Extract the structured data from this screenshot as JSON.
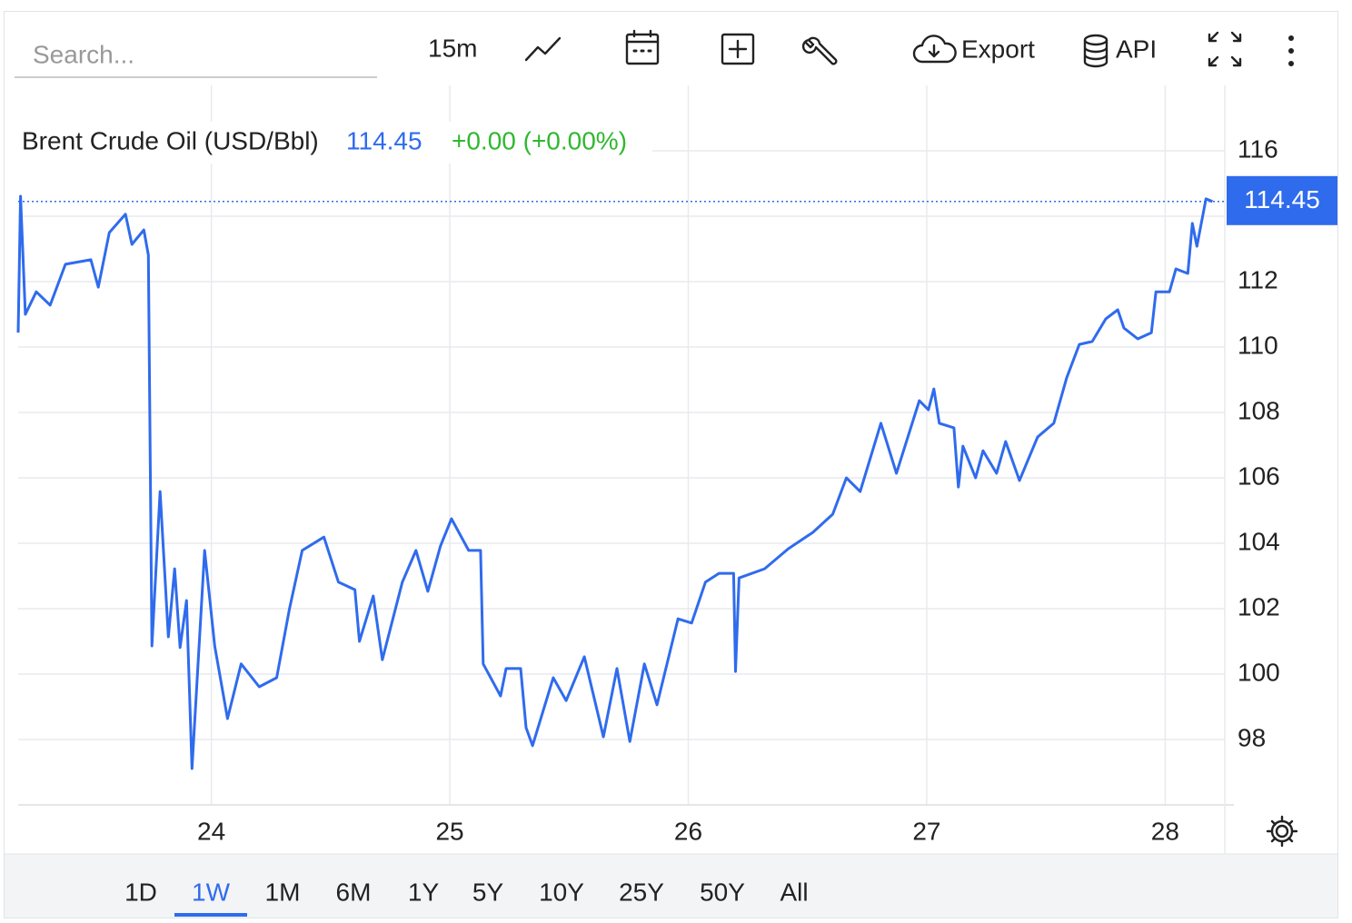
{
  "toolbar": {
    "search_placeholder": "Search...",
    "interval": "15m",
    "export": "Export",
    "api": "API"
  },
  "chart_data": {
    "type": "line",
    "title": "Brent Crude Oil (USD/Bbl)",
    "price": 114.45,
    "change": "+0.00 (+0.00%)",
    "color": "#2f6bed",
    "grid": true,
    "xlim": [
      23.19,
      28.25
    ],
    "xticks": [
      24,
      25,
      26,
      27,
      28
    ],
    "ylim": [
      96,
      118
    ],
    "yticks": [
      98,
      100,
      102,
      104,
      106,
      108,
      110,
      112,
      114,
      116
    ],
    "x": [
      23.19,
      23.2,
      23.22,
      23.266,
      23.324,
      23.388,
      23.495,
      23.526,
      23.572,
      23.64,
      23.667,
      23.717,
      23.736,
      23.751,
      23.785,
      23.82,
      23.846,
      23.869,
      23.896,
      23.919,
      23.972,
      24.014,
      24.068,
      24.125,
      24.201,
      24.274,
      24.327,
      24.381,
      24.472,
      24.533,
      24.602,
      24.621,
      24.679,
      24.717,
      24.801,
      24.858,
      24.908,
      24.961,
      25.007,
      25.079,
      25.129,
      25.14,
      25.213,
      25.236,
      25.297,
      25.32,
      25.347,
      25.434,
      25.488,
      25.564,
      25.644,
      25.701,
      25.755,
      25.816,
      25.869,
      25.957,
      26.014,
      26.072,
      26.129,
      26.19,
      26.198,
      26.213,
      26.32,
      26.419,
      26.522,
      26.606,
      26.663,
      26.721,
      26.808,
      26.873,
      26.969,
      27.007,
      27.03,
      27.053,
      27.114,
      27.133,
      27.152,
      27.205,
      27.236,
      27.293,
      27.331,
      27.389,
      27.465,
      27.533,
      27.587,
      27.64,
      27.694,
      27.751,
      27.801,
      27.827,
      27.885,
      27.942,
      27.961,
      28.018,
      28.045,
      28.095,
      28.114,
      28.133,
      28.171,
      28.198
    ],
    "series": [
      {
        "name": "Brent Crude Oil (USD/Bbl)",
        "color": "#2f6bed",
        "values": [
          110.44,
          114.61,
          111.0,
          111.69,
          111.28,
          112.53,
          112.67,
          111.83,
          113.5,
          114.06,
          113.14,
          113.58,
          112.81,
          100.86,
          105.58,
          101.14,
          103.22,
          100.81,
          102.25,
          97.11,
          103.78,
          100.86,
          98.64,
          100.31,
          99.61,
          99.89,
          101.97,
          103.78,
          104.19,
          102.81,
          102.58,
          101.0,
          102.39,
          100.44,
          102.81,
          103.78,
          102.53,
          103.92,
          104.75,
          103.78,
          103.78,
          100.31,
          99.33,
          100.17,
          100.17,
          98.36,
          97.81,
          99.89,
          99.19,
          100.53,
          98.08,
          100.17,
          97.94,
          100.31,
          99.06,
          101.69,
          101.56,
          102.81,
          103.08,
          103.08,
          100.08,
          102.94,
          103.22,
          103.83,
          104.33,
          104.89,
          106.0,
          105.58,
          107.67,
          106.14,
          108.36,
          108.08,
          108.72,
          107.67,
          107.53,
          105.72,
          106.97,
          106.0,
          106.83,
          106.14,
          107.11,
          105.92,
          107.25,
          107.67,
          109.06,
          110.08,
          110.17,
          110.86,
          111.14,
          110.58,
          110.25,
          110.44,
          111.69,
          111.69,
          112.39,
          112.25,
          113.78,
          113.08,
          114.53,
          114.45
        ]
      }
    ]
  },
  "ranges": [
    {
      "label": "1D",
      "selected": false
    },
    {
      "label": "1W",
      "selected": true
    },
    {
      "label": "1M",
      "selected": false
    },
    {
      "label": "6M",
      "selected": false
    },
    {
      "label": "1Y",
      "selected": false
    },
    {
      "label": "5Y",
      "selected": false
    },
    {
      "label": "10Y",
      "selected": false
    },
    {
      "label": "25Y",
      "selected": false
    },
    {
      "label": "50Y",
      "selected": false
    },
    {
      "label": "All",
      "selected": false
    }
  ]
}
